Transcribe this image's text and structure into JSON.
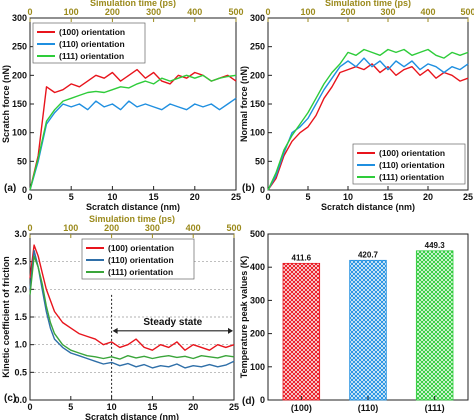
{
  "chart_data": [
    {
      "panel": "(a)",
      "type": "line",
      "xlabel": "Scratch distance (nm)",
      "ylabel": "Scratch force (nN)",
      "top_xlabel": "Simulation time (ps)",
      "xlim": [
        0,
        25
      ],
      "ylim": [
        0,
        300
      ],
      "xticks": [
        0,
        5,
        10,
        15,
        20,
        25
      ],
      "yticks": [
        0,
        50,
        100,
        150,
        200,
        250,
        300
      ],
      "top_xticks": [
        0,
        100,
        200,
        300,
        400,
        500
      ],
      "legend_position": "top-left",
      "x": [
        0,
        1,
        2,
        3,
        4,
        5,
        6,
        7,
        8,
        9,
        10,
        11,
        12,
        13,
        14,
        15,
        16,
        17,
        18,
        19,
        20,
        21,
        22,
        23,
        24,
        25
      ],
      "series": [
        {
          "name": "(100) orientation",
          "color": "#e8141c",
          "values": [
            0,
            60,
            180,
            170,
            175,
            185,
            180,
            190,
            200,
            195,
            205,
            190,
            200,
            210,
            195,
            205,
            190,
            185,
            200,
            195,
            205,
            200,
            190,
            195,
            200,
            190
          ]
        },
        {
          "name": "(110) orientation",
          "color": "#1f8fe0",
          "values": [
            0,
            50,
            115,
            135,
            150,
            145,
            150,
            140,
            155,
            145,
            150,
            140,
            155,
            145,
            150,
            145,
            140,
            150,
            145,
            140,
            150,
            145,
            150,
            140,
            150,
            160
          ]
        },
        {
          "name": "(111) orientation",
          "color": "#2ecc3a",
          "values": [
            0,
            55,
            120,
            140,
            155,
            160,
            165,
            170,
            172,
            170,
            175,
            180,
            178,
            185,
            190,
            185,
            195,
            190,
            195,
            200,
            195,
            200,
            190,
            195,
            198,
            200
          ]
        }
      ]
    },
    {
      "panel": "(b)",
      "type": "line",
      "xlabel": "Scratch distance (nm)",
      "ylabel": "Normal force (nN)",
      "top_xlabel": "Simulation time (ps)",
      "xlim": [
        0,
        25
      ],
      "ylim": [
        0,
        300
      ],
      "xticks": [
        0,
        5,
        10,
        15,
        20,
        25
      ],
      "yticks": [
        0,
        50,
        100,
        150,
        200,
        250,
        300
      ],
      "top_xticks": [
        0,
        100,
        200,
        300,
        400,
        500
      ],
      "legend_position": "bottom-right",
      "x": [
        0,
        1,
        2,
        3,
        4,
        5,
        6,
        7,
        8,
        9,
        10,
        11,
        12,
        13,
        14,
        15,
        16,
        17,
        18,
        19,
        20,
        21,
        22,
        23,
        24,
        25
      ],
      "series": [
        {
          "name": "(100) orientation",
          "color": "#e8141c",
          "values": [
            0,
            20,
            60,
            85,
            100,
            110,
            130,
            160,
            180,
            205,
            210,
            215,
            210,
            220,
            205,
            215,
            200,
            210,
            215,
            200,
            210,
            195,
            205,
            200,
            190,
            195
          ]
        },
        {
          "name": "(110) orientation",
          "color": "#1f8fe0",
          "values": [
            0,
            25,
            65,
            100,
            110,
            125,
            150,
            175,
            195,
            215,
            225,
            215,
            230,
            215,
            225,
            210,
            225,
            215,
            225,
            210,
            220,
            215,
            205,
            215,
            210,
            220
          ]
        },
        {
          "name": "(111) orientation",
          "color": "#2ecc3a",
          "values": [
            0,
            30,
            70,
            95,
            115,
            135,
            160,
            185,
            205,
            220,
            240,
            235,
            245,
            240,
            235,
            245,
            240,
            245,
            235,
            240,
            245,
            235,
            230,
            240,
            235,
            240
          ]
        }
      ]
    },
    {
      "panel": "(c)",
      "type": "line",
      "xlabel": "Scratch distance (nm)",
      "ylabel": "Kinetic coefficient of friction",
      "top_xlabel": "Simulation time (ps)",
      "xlim": [
        0,
        25
      ],
      "ylim": [
        0.0,
        3.0
      ],
      "xticks": [
        0,
        5,
        10,
        15,
        20,
        25
      ],
      "yticks": [
        0.0,
        0.5,
        1.0,
        1.5,
        2.0,
        2.5,
        3.0
      ],
      "top_xticks": [
        0,
        100,
        200,
        300,
        400,
        500
      ],
      "legend_position": "top-right",
      "grid": "horizontal-dashed",
      "annotation": "Steady state",
      "steady_state_range": [
        10,
        25
      ],
      "x": [
        0,
        0.5,
        1,
        1.5,
        2,
        2.5,
        3,
        4,
        5,
        6,
        7,
        8,
        9,
        10,
        11,
        12,
        13,
        14,
        15,
        16,
        17,
        18,
        19,
        20,
        21,
        22,
        23,
        24,
        25
      ],
      "series": [
        {
          "name": "(100) orientation",
          "color": "#e8141c",
          "values": [
            2.2,
            2.8,
            2.6,
            2.3,
            2.0,
            1.8,
            1.6,
            1.4,
            1.3,
            1.2,
            1.15,
            1.1,
            1.0,
            1.05,
            0.95,
            1.0,
            1.1,
            0.95,
            0.9,
            1.0,
            0.95,
            1.05,
            0.9,
            1.0,
            0.95,
            0.9,
            1.0,
            0.95,
            1.0
          ]
        },
        {
          "name": "(110) orientation",
          "color": "#2f6fa8",
          "values": [
            2.0,
            2.7,
            2.4,
            2.0,
            1.6,
            1.3,
            1.1,
            0.95,
            0.85,
            0.8,
            0.75,
            0.7,
            0.65,
            0.68,
            0.62,
            0.66,
            0.6,
            0.64,
            0.58,
            0.62,
            0.6,
            0.65,
            0.58,
            0.62,
            0.6,
            0.64,
            0.6,
            0.63,
            0.7
          ]
        },
        {
          "name": "(111) orientation",
          "color": "#3aa53a",
          "values": [
            1.9,
            2.6,
            2.4,
            2.1,
            1.7,
            1.4,
            1.2,
            1.0,
            0.9,
            0.85,
            0.8,
            0.78,
            0.75,
            0.78,
            0.74,
            0.8,
            0.76,
            0.79,
            0.75,
            0.78,
            0.8,
            0.77,
            0.79,
            0.75,
            0.8,
            0.78,
            0.76,
            0.8,
            0.78
          ]
        }
      ]
    },
    {
      "panel": "(d)",
      "type": "bar",
      "ylabel": "Temperature peak values (K)",
      "ylim": [
        0,
        500
      ],
      "yticks": [
        0,
        100,
        200,
        300,
        400,
        500
      ],
      "categories": [
        "(100)",
        "(110)",
        "(111)"
      ],
      "values": [
        411.6,
        420.7,
        449.3
      ],
      "value_labels": [
        "411.6",
        "420.7",
        "449.3"
      ],
      "colors": [
        "#e8141c",
        "#1f8fe0",
        "#2ecc3a"
      ],
      "fill": "cross-hatch"
    }
  ]
}
